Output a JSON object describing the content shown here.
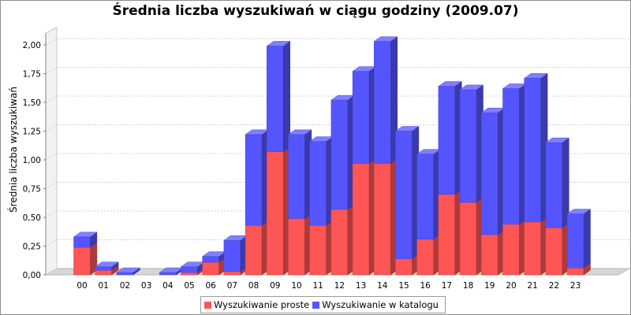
{
  "chart_data": {
    "type": "bar",
    "stacked": true,
    "three_d": true,
    "title": "Średnia liczba wyszukiwań w ciągu godziny (2009.07)",
    "xlabel": "",
    "ylabel": "Średnia liczba wyszukiwań",
    "categories": [
      "00",
      "01",
      "02",
      "03",
      "04",
      "05",
      "06",
      "07",
      "08",
      "09",
      "10",
      "11",
      "12",
      "13",
      "14",
      "15",
      "16",
      "17",
      "18",
      "19",
      "20",
      "21",
      "22",
      "23"
    ],
    "series": [
      {
        "name": "Wyszukiwanie proste",
        "color": "#ff5555",
        "values": [
          0.24,
          0.04,
          0.0,
          0.0,
          0.0,
          0.02,
          0.11,
          0.03,
          0.43,
          1.07,
          0.49,
          0.43,
          0.57,
          0.97,
          0.97,
          0.14,
          0.31,
          0.7,
          0.63,
          0.35,
          0.44,
          0.46,
          0.41,
          0.06
        ]
      },
      {
        "name": "Wyszukiwanie w katalogu",
        "color": "#5555ff",
        "values": [
          0.09,
          0.03,
          0.02,
          0.0,
          0.02,
          0.05,
          0.05,
          0.27,
          0.79,
          0.92,
          0.73,
          0.73,
          0.95,
          0.8,
          1.06,
          1.11,
          0.74,
          0.94,
          0.98,
          1.06,
          1.18,
          1.25,
          0.74,
          0.47
        ]
      }
    ],
    "ylim": [
      0,
      2.1
    ],
    "yticks": [
      "0,00",
      "0,25",
      "0,50",
      "0,75",
      "1,00",
      "1,25",
      "1,50",
      "1,75",
      "2,00"
    ],
    "grid": true,
    "legend_position": "bottom"
  }
}
